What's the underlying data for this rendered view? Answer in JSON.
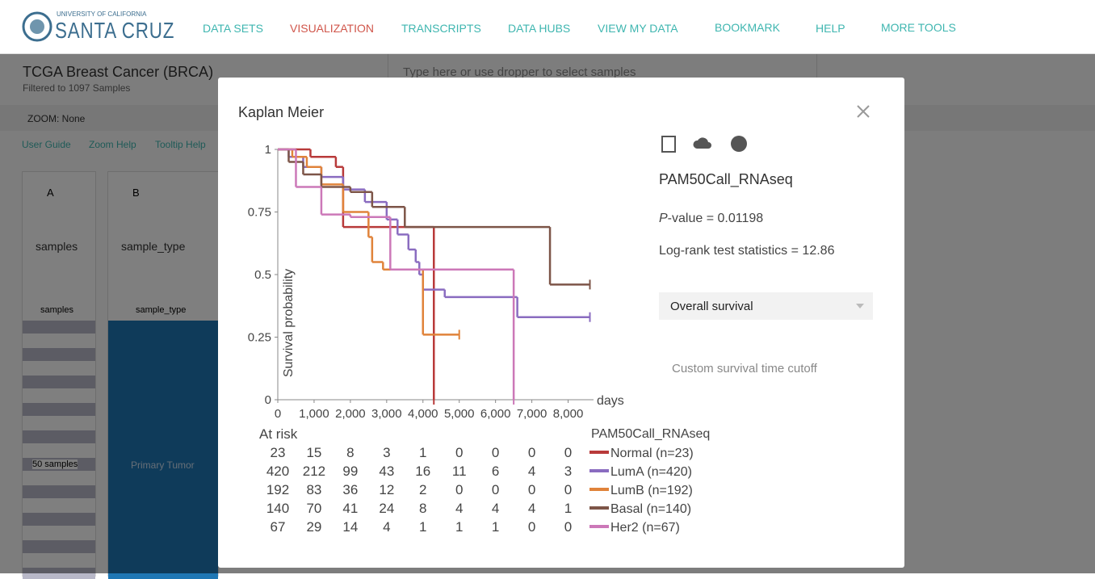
{
  "nav": {
    "logo_small": "UNIVERSITY OF CALIFORNIA",
    "logo_big": "SANTA CRUZ",
    "links": [
      "DATA SETS",
      "VISUALIZATION",
      "TRANSCRIPTS",
      "DATA HUBS",
      "VIEW MY DATA",
      "BOOKMARK",
      "HELP",
      "MORE TOOLS"
    ]
  },
  "workspace": {
    "title": "TCGA Breast Cancer (BRCA)",
    "subtitle": "Filtered to 1097 Samples",
    "search": "Type here or use dropper to select samples",
    "zoom": "ZOOM: None",
    "help_links": [
      "User Guide",
      "Zoom Help",
      "Tooltip Help"
    ],
    "columns": [
      {
        "letter": "A",
        "field": "samples",
        "label": "samples"
      },
      {
        "letter": "B",
        "field": "sample_type",
        "label": "sample_type"
      }
    ],
    "sample_count": "50 samples",
    "category": "Primary Tumor"
  },
  "modal": {
    "title": "Kaplan Meier",
    "variable": "PAM50Call_RNAseq",
    "p_symbol": "P",
    "p_text": "-value =",
    "p_value": 0.01198,
    "stat_text": "Log-rank test statistics =",
    "stat_value": 12.86,
    "survival_type": "Overall survival",
    "cutoff": "Custom survival time cutoff"
  },
  "chart_data": {
    "type": "line",
    "step": true,
    "y_label": "Survival probability",
    "x_label": "days",
    "xlim": [
      0,
      8700
    ],
    "ylim": [
      0,
      1
    ],
    "xticks": [
      0,
      {
        "value": 1000,
        "label": "1,000"
      },
      {
        "value": 2000,
        "label": "2,000"
      },
      {
        "value": 3000,
        "label": "3,000"
      },
      {
        "value": 4000,
        "label": "4,000"
      },
      {
        "value": 5000,
        "label": "5,000"
      },
      {
        "value": 6000,
        "label": "6,000"
      },
      {
        "value": 7000,
        "label": "7,000"
      },
      {
        "value": 8000,
        "label": "8,000"
      }
    ],
    "yticks": [
      0,
      0.25,
      0.5,
      0.75,
      1
    ],
    "at_risk_title": "At risk",
    "legend_title": "PAM50Call_RNAseq",
    "series": [
      {
        "name": "Normal (n=23)",
        "color": "#b83a3a",
        "x": [
          0,
          900,
          1600,
          1800,
          4300
        ],
        "values": [
          1,
          0.97,
          0.93,
          0.69,
          0
        ],
        "at_risk": [
          23,
          15,
          8,
          3,
          1,
          0,
          0,
          0,
          0
        ]
      },
      {
        "name": "LumA (n=420)",
        "color": "#8a6cc0",
        "x": [
          0,
          300,
          700,
          1200,
          1800,
          2400,
          3000,
          3300,
          3600,
          3800,
          3900,
          4000,
          4600,
          6600,
          8600
        ],
        "values": [
          1,
          0.97,
          0.93,
          0.89,
          0.84,
          0.79,
          0.72,
          0.66,
          0.6,
          0.55,
          0.5,
          0.44,
          0.41,
          0.33,
          0.33
        ],
        "at_risk": [
          420,
          212,
          99,
          43,
          16,
          11,
          6,
          4,
          3
        ]
      },
      {
        "name": "LumB (n=192)",
        "color": "#e0833a",
        "x": [
          0,
          400,
          800,
          1200,
          1800,
          2500,
          2600,
          2900,
          3800,
          4000,
          5000
        ],
        "values": [
          1,
          0.97,
          0.93,
          0.86,
          0.75,
          0.65,
          0.55,
          0.52,
          0.52,
          0.26,
          0.26
        ],
        "at_risk": [
          192,
          83,
          36,
          12,
          2,
          0,
          0,
          0,
          0
        ]
      },
      {
        "name": "Basal (n=140)",
        "color": "#7d5548",
        "x": [
          0,
          300,
          700,
          1200,
          2000,
          2600,
          3500,
          7500,
          8600
        ],
        "values": [
          1,
          0.95,
          0.9,
          0.85,
          0.83,
          0.77,
          0.69,
          0.46,
          0.46
        ],
        "at_risk": [
          140,
          70,
          41,
          24,
          8,
          4,
          4,
          4,
          1
        ]
      },
      {
        "name": "Her2 (n=67)",
        "color": "#cc78b8",
        "x": [
          0,
          500,
          1200,
          2000,
          3100,
          6500
        ],
        "values": [
          1,
          0.85,
          0.74,
          0.73,
          0.52,
          0
        ],
        "at_risk": [
          67,
          29,
          14,
          4,
          1,
          1,
          1,
          0,
          0
        ]
      }
    ]
  }
}
